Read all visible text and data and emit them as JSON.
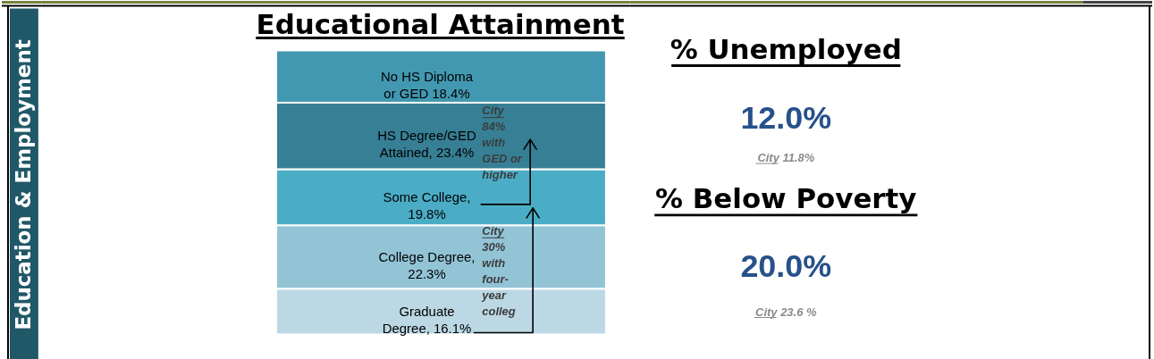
{
  "chart_data": [
    {
      "type": "other",
      "title": "Education & Employment"
    },
    {
      "type": "bar",
      "title": "Educational Attainment",
      "categories": [
        null
      ],
      "stacked": true,
      "ylim": [
        0,
        100
      ],
      "tick_labels": false,
      "series": [
        {
          "name": "Graduate Degree,",
          "color": "#bcd8e4",
          "values": [
            16.1
          ],
          "value_labels": [
            "16.1%"
          ]
        },
        {
          "name": "College Degree,",
          "color": "#92c4d6",
          "values": [
            22.3
          ],
          "value_labels": [
            "22.3%"
          ]
        },
        {
          "name": "Some College,",
          "color": "#4bacc6",
          "values": [
            19.8
          ],
          "value_labels": [
            "19.8%"
          ]
        },
        {
          "name": "HS Degree/GED Attained,",
          "color": "#367f95",
          "values": [
            23.4
          ],
          "value_labels": [
            "23.4%"
          ]
        },
        {
          "name": "No HS Diploma or GED",
          "color": "#4398b1",
          "values": [
            18.4
          ],
          "value_labels": [
            "18.4%"
          ]
        }
      ],
      "annotations": [
        "City 84% with GED or higher",
        "City 30% with four-year colleg"
      ]
    },
    {
      "type": "other",
      "title": "% Unemployed",
      "annotations": [
        "12.0%",
        "City 11.8%"
      ]
    },
    {
      "type": "other",
      "title": "% Below Poverty",
      "annotations": [
        "20.0%",
        "City 23.6 %"
      ]
    }
  ]
}
